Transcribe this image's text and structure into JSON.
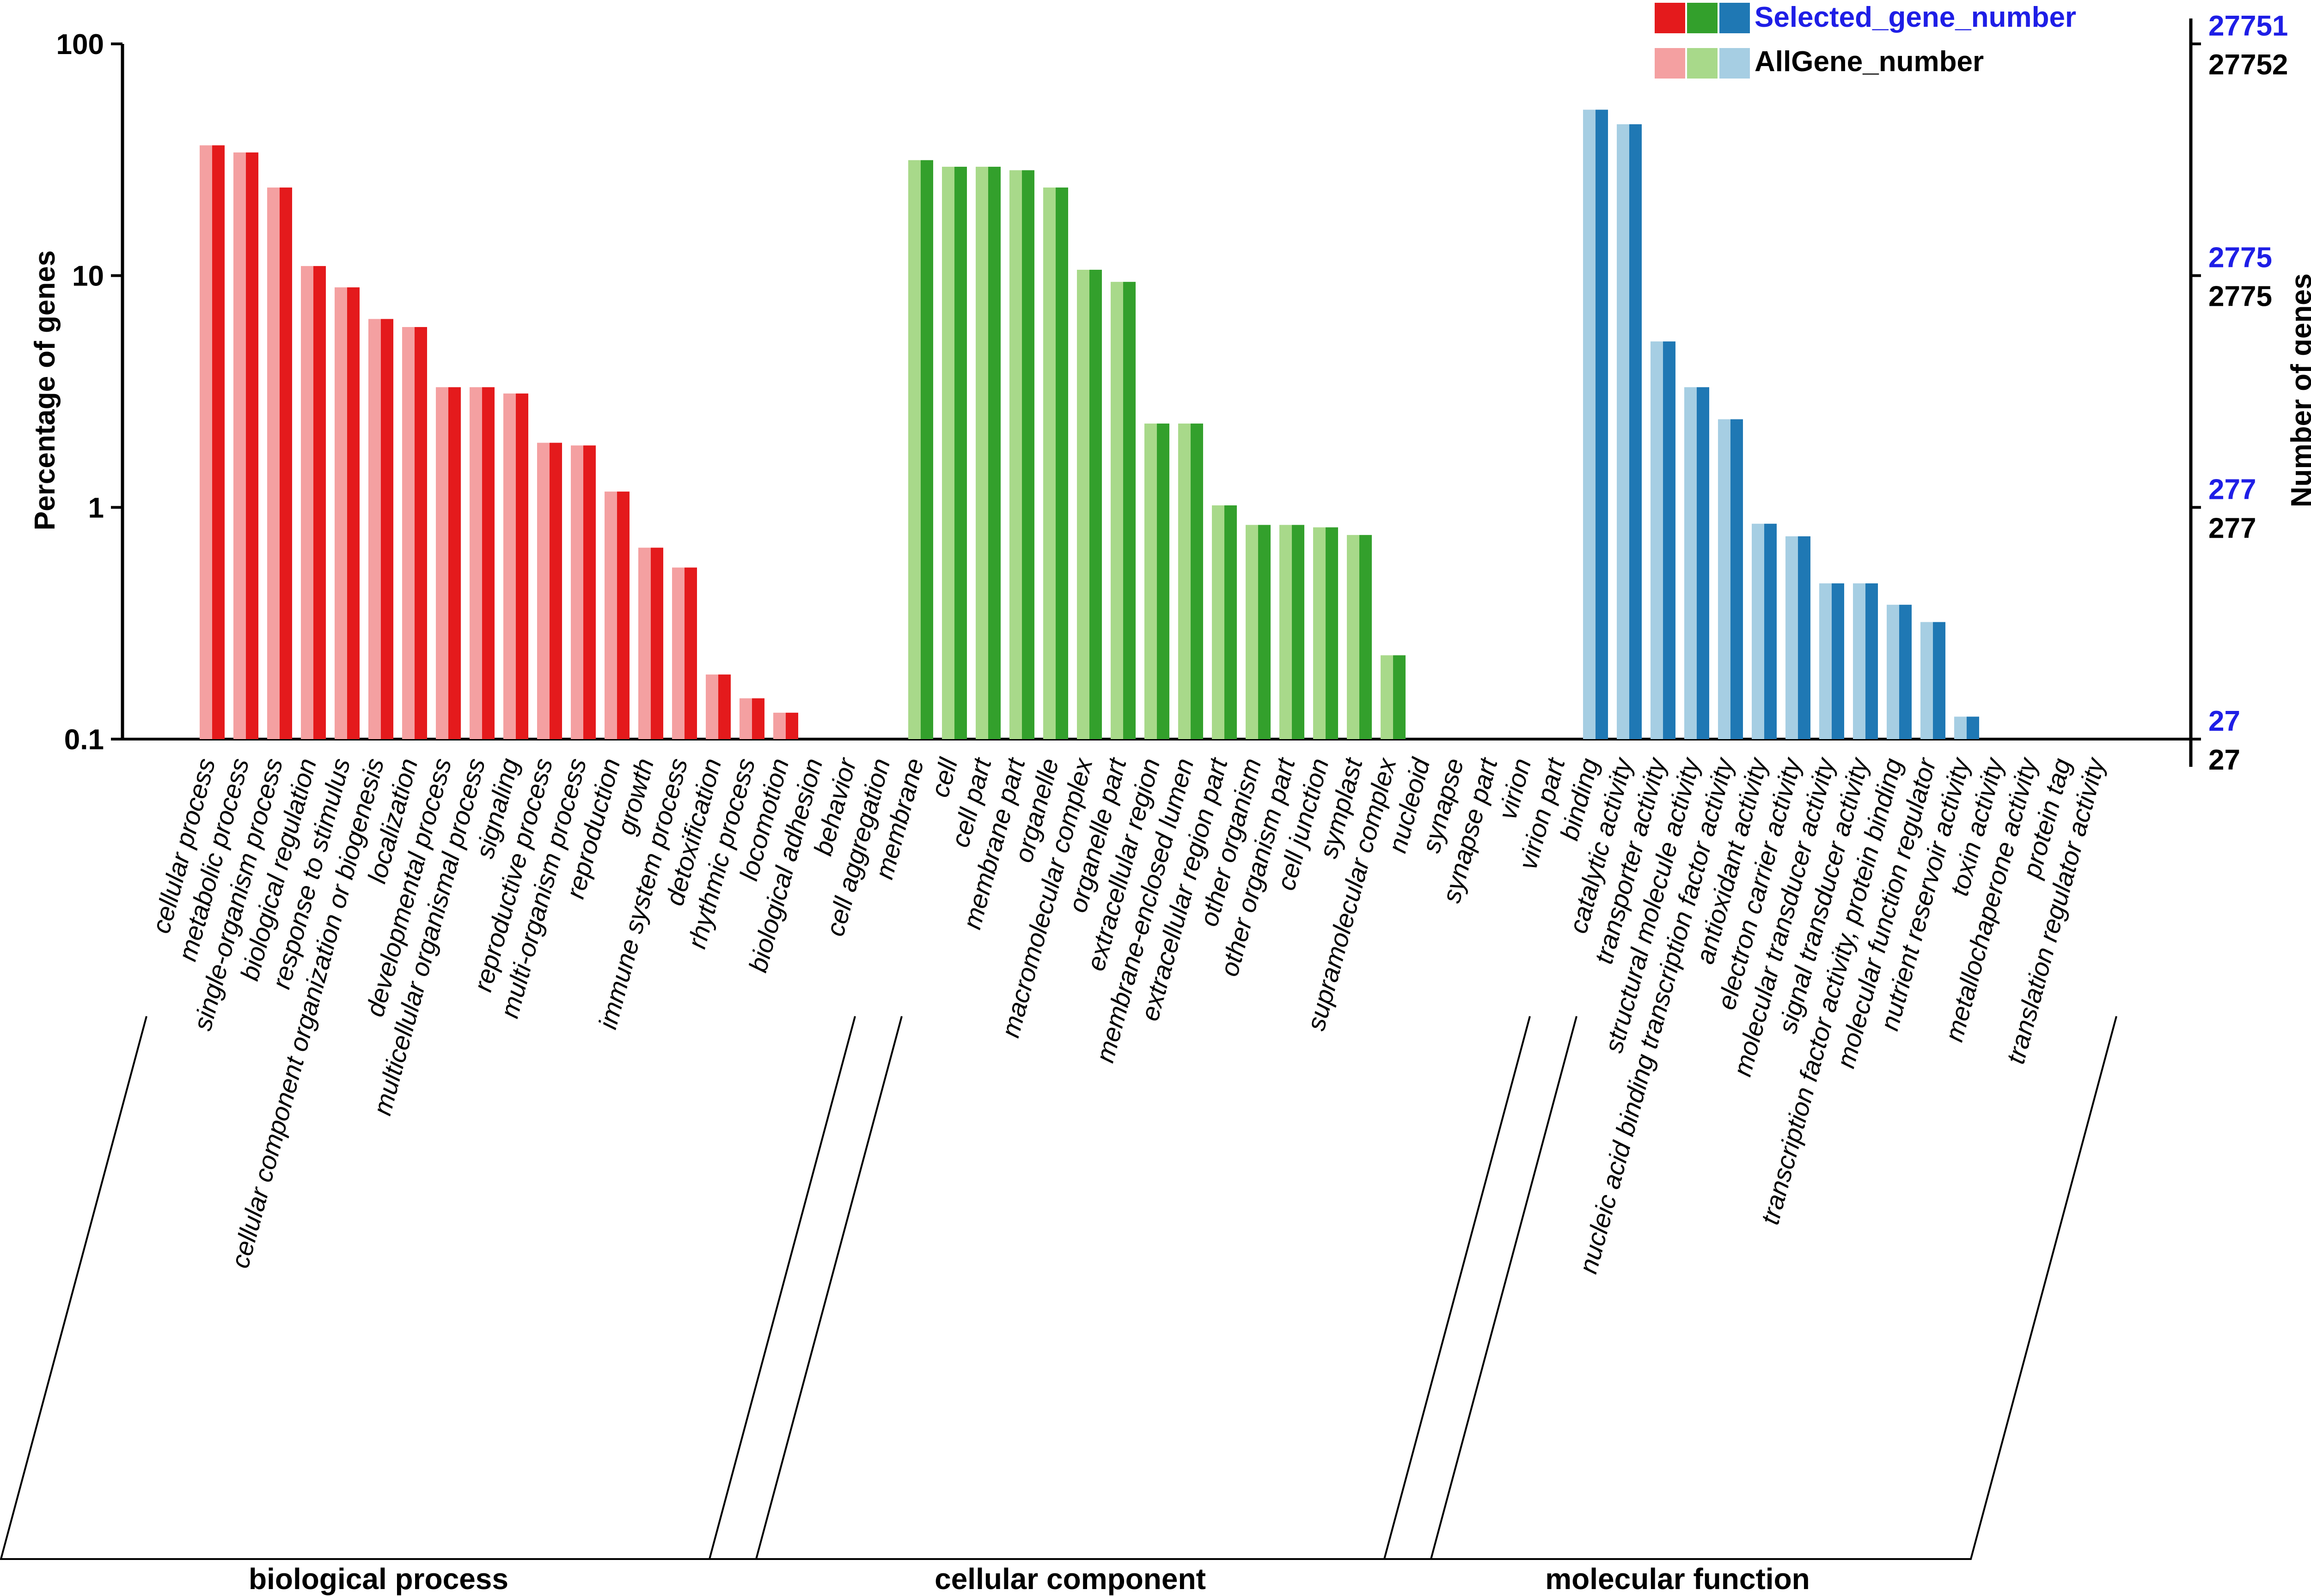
{
  "chart_data": {
    "type": "bar",
    "y_scale": "log",
    "ylabel": "Percentage of genes",
    "y2label": "Number of genes",
    "ylim": [
      0.1,
      100
    ],
    "yticks": [
      "100",
      "10",
      "1",
      "0.1"
    ],
    "right_ticks_selected": [
      "27751",
      "2775",
      "277",
      "27"
    ],
    "right_ticks_all": [
      "27752",
      "2775",
      "277",
      "27"
    ],
    "legend": {
      "selected": "Selected_gene_number",
      "all": "AllGene_number",
      "placement": "top-right"
    },
    "colors": {
      "selected_text": "#1e1ee6",
      "right_all_text": "#000000",
      "groups": [
        {
          "dark": "#e41a1c",
          "light": "#f4a0a1"
        },
        {
          "dark": "#33a02c",
          "light": "#a8d98a"
        },
        {
          "dark": "#1f78b4",
          "light": "#a6cee3"
        }
      ]
    },
    "groups": [
      {
        "name": "biological process",
        "categories": [
          {
            "label": "cellular process",
            "all": 36.5,
            "selected": 36.5
          },
          {
            "label": "metabolic process",
            "all": 34,
            "selected": 34
          },
          {
            "label": "single-organism process",
            "all": 24,
            "selected": 24
          },
          {
            "label": "biological regulation",
            "all": 11,
            "selected": 11
          },
          {
            "label": "response to stimulus",
            "all": 8.9,
            "selected": 8.9
          },
          {
            "label": "cellular component organization or biogenesis",
            "all": 6.5,
            "selected": 6.5
          },
          {
            "label": "localization",
            "all": 6,
            "selected": 6
          },
          {
            "label": "developmental process",
            "all": 3.3,
            "selected": 3.3
          },
          {
            "label": "multicellular organismal process",
            "all": 3.3,
            "selected": 3.3
          },
          {
            "label": "signaling",
            "all": 3.1,
            "selected": 3.1
          },
          {
            "label": "reproductive process",
            "all": 1.9,
            "selected": 1.9
          },
          {
            "label": "multi-organism process",
            "all": 1.85,
            "selected": 1.85
          },
          {
            "label": "reproduction",
            "all": 1.17,
            "selected": 1.17
          },
          {
            "label": "growth",
            "all": 0.67,
            "selected": 0.67
          },
          {
            "label": "immune system process",
            "all": 0.55,
            "selected": 0.55
          },
          {
            "label": "detoxification",
            "all": 0.19,
            "selected": 0.19
          },
          {
            "label": "rhythmic process",
            "all": 0.15,
            "selected": 0.15
          },
          {
            "label": "locomotion",
            "all": 0.13,
            "selected": 0.13
          },
          {
            "label": "biological adhesion",
            "all": 0.1,
            "selected": 0.1
          },
          {
            "label": "behavior",
            "all": 0.1,
            "selected": 0.1
          },
          {
            "label": "cell aggregation",
            "all": 0.1,
            "selected": 0.1
          }
        ]
      },
      {
        "name": "cellular component",
        "categories": [
          {
            "label": "membrane",
            "all": 31.5,
            "selected": 31.5
          },
          {
            "label": "cell",
            "all": 29.5,
            "selected": 29.5
          },
          {
            "label": "cell part",
            "all": 29.5,
            "selected": 29.5
          },
          {
            "label": "membrane part",
            "all": 28.5,
            "selected": 28.5
          },
          {
            "label": "organelle",
            "all": 24,
            "selected": 24
          },
          {
            "label": "macromolecular complex",
            "all": 10.6,
            "selected": 10.6
          },
          {
            "label": "organelle part",
            "all": 9.4,
            "selected": 9.4
          },
          {
            "label": "extracellular region",
            "all": 2.3,
            "selected": 2.3
          },
          {
            "label": "membrane-enclosed lumen",
            "all": 2.3,
            "selected": 2.3
          },
          {
            "label": "extracellular region part",
            "all": 1.02,
            "selected": 1.02
          },
          {
            "label": "other organism",
            "all": 0.84,
            "selected": 0.84
          },
          {
            "label": "other organism part",
            "all": 0.84,
            "selected": 0.84
          },
          {
            "label": "cell junction",
            "all": 0.82,
            "selected": 0.82
          },
          {
            "label": "symplast",
            "all": 0.76,
            "selected": 0.76
          },
          {
            "label": "supramolecular complex",
            "all": 0.23,
            "selected": 0.23
          },
          {
            "label": "nucleoid",
            "all": 0.1,
            "selected": 0.1
          },
          {
            "label": "synapse",
            "all": 0.1,
            "selected": 0.1
          },
          {
            "label": "synapse part",
            "all": 0.1,
            "selected": 0.1
          },
          {
            "label": "virion",
            "all": 0.1,
            "selected": 0.1
          },
          {
            "label": "virion part",
            "all": 0.1,
            "selected": 0.1
          }
        ]
      },
      {
        "name": "molecular function",
        "categories": [
          {
            "label": "binding",
            "all": 52,
            "selected": 52
          },
          {
            "label": "catalytic activity",
            "all": 45,
            "selected": 45
          },
          {
            "label": "transporter activity",
            "all": 5.2,
            "selected": 5.2
          },
          {
            "label": "structural molecule activity",
            "all": 3.3,
            "selected": 3.3
          },
          {
            "label": "nucleic acid binding transcription factor activity",
            "all": 2.4,
            "selected": 2.4
          },
          {
            "label": "antioxidant activity",
            "all": 0.85,
            "selected": 0.85
          },
          {
            "label": "electron carrier activity",
            "all": 0.75,
            "selected": 0.75
          },
          {
            "label": "molecular transducer activity",
            "all": 0.47,
            "selected": 0.47
          },
          {
            "label": "signal transducer activity",
            "all": 0.47,
            "selected": 0.47
          },
          {
            "label": "transcription factor activity, protein binding",
            "all": 0.38,
            "selected": 0.38
          },
          {
            "label": "molecular function regulator",
            "all": 0.32,
            "selected": 0.32
          },
          {
            "label": "nutrient reservoir activity",
            "all": 0.125,
            "selected": 0.125
          },
          {
            "label": "toxin activity",
            "all": 0.1,
            "selected": 0.1
          },
          {
            "label": "metallochaperone activity",
            "all": 0.1,
            "selected": 0.1
          },
          {
            "label": "protein tag",
            "all": 0.1,
            "selected": 0.1
          },
          {
            "label": "translation regulator activity",
            "all": 0.1,
            "selected": 0.1
          }
        ]
      }
    ]
  }
}
